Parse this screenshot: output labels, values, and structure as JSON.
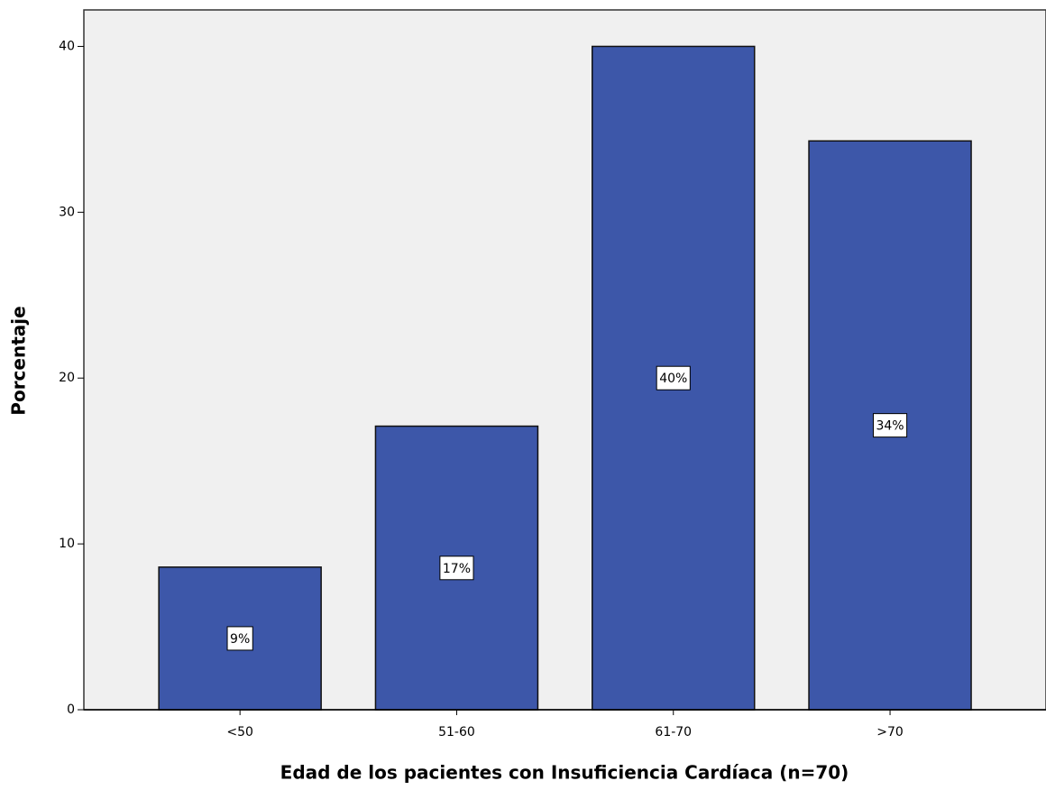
{
  "chart_data": {
    "type": "bar",
    "x_label": "Edad de los pacientes con Insuficiencia Cardíaca (n=70)",
    "y_label": "Porcentaje",
    "categories": [
      "<50",
      "51-60",
      "61-70",
      ">70"
    ],
    "values": [
      8.6,
      17.1,
      40,
      34.3
    ],
    "value_labels": [
      "9%",
      "17%",
      "40%",
      "34%"
    ],
    "color": "#3d57a9",
    "ylim": [
      0,
      42.2
    ],
    "yticks": [
      0,
      10,
      20,
      30,
      40
    ],
    "grid": false
  }
}
